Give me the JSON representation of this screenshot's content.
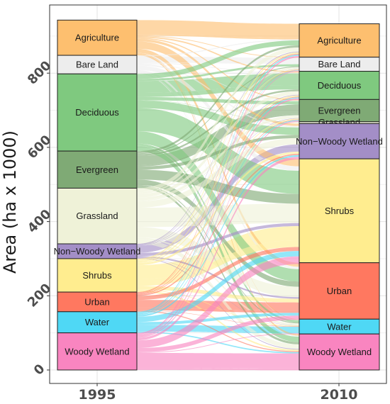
{
  "chart_data": {
    "type": "alluvial",
    "title": "",
    "ylabel": "Area (ha x 1000)",
    "xlabel": "",
    "ylim": [
      -5,
      1000
    ],
    "yticks": [
      0,
      200,
      400,
      600,
      800
    ],
    "grid": true,
    "legend": "none",
    "axes": [
      "1995",
      "2010"
    ],
    "categories": [
      "Agriculture",
      "Bare Land",
      "Deciduous",
      "Evergreen",
      "Grassland",
      "Non−Woody Wetland",
      "Shrubs",
      "Urban",
      "Water",
      "Woody Wetland"
    ],
    "colors": {
      "Agriculture": "#FDBF6F",
      "Bare Land": "#EDEDED",
      "Deciduous": "#7FC97F",
      "Evergreen": "#7FAA75",
      "Grassland": "#EFF2D8",
      "Non−Woody Wetland": "#A38EC7",
      "Shrubs": "#FFED8F",
      "Urban": "#FF7860",
      "Water": "#4FD8F5",
      "Woody Wetland": "#F985C0"
    },
    "values_1995": {
      "Agriculture": 95,
      "Bare Land": 50,
      "Deciduous": 208,
      "Evergreen": 100,
      "Grassland": 150,
      "Non−Woody Wetland": 40,
      "Shrubs": 90,
      "Urban": 53,
      "Water": 57,
      "Woody Wetland": 100
    },
    "values_2010": {
      "Agriculture": 90,
      "Bare Land": 38,
      "Deciduous": 76,
      "Evergreen": 60,
      "Grassland": 5,
      "Non−Woody Wetland": 95,
      "Shrubs": 280,
      "Urban": 152,
      "Water": 40,
      "Woody Wetland": 97
    }
  }
}
